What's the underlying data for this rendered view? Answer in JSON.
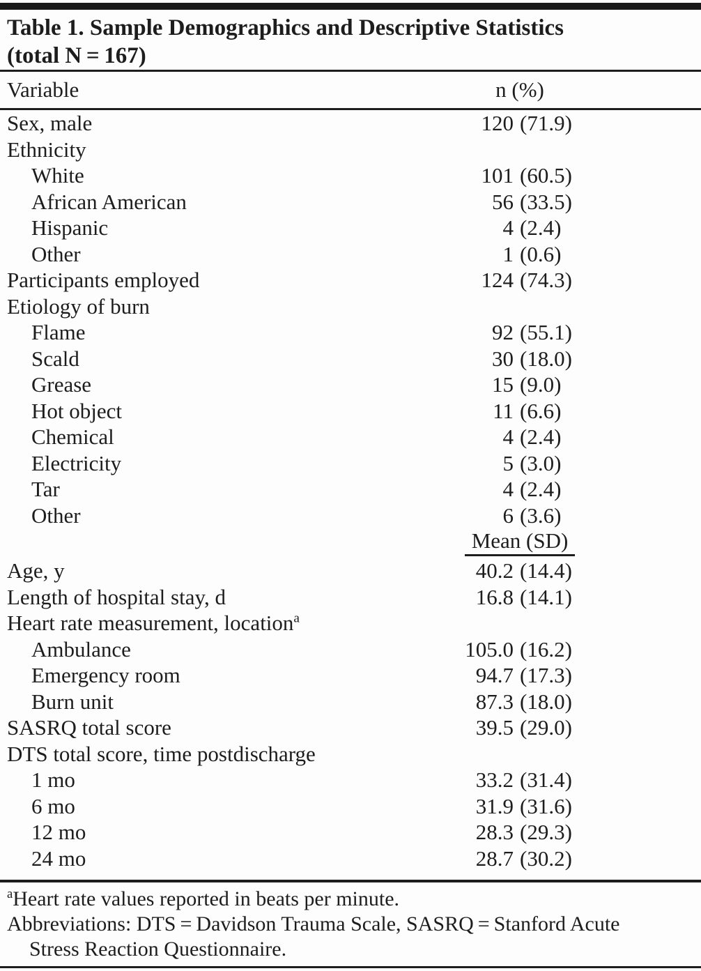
{
  "title": {
    "line1": "Table 1. Sample Demographics and Descriptive Statistics",
    "line2": "(total N = 167)"
  },
  "header": {
    "variable_col": "Variable",
    "n_col": "n (%)"
  },
  "table": {
    "mean_header": "Mean (SD)",
    "rows_n": [
      {
        "label": "Sex, male",
        "n": "120",
        "pct": "(71.9)",
        "indent": false
      },
      {
        "label": "Ethnicity",
        "indent": false
      },
      {
        "label": "White",
        "n": "101",
        "pct": "(60.5)",
        "indent": true
      },
      {
        "label": "African American",
        "n": "56",
        "pct": "(33.5)",
        "indent": true
      },
      {
        "label": "Hispanic",
        "n": "4",
        "pct": "(2.4)",
        "indent": true
      },
      {
        "label": "Other",
        "n": "1",
        "pct": "(0.6)",
        "indent": true
      },
      {
        "label": "Participants employed",
        "n": "124",
        "pct": "(74.3)",
        "indent": false
      },
      {
        "label": "Etiology of burn",
        "indent": false
      },
      {
        "label": "Flame",
        "n": "92",
        "pct": "(55.1)",
        "indent": true
      },
      {
        "label": "Scald",
        "n": "30",
        "pct": "(18.0)",
        "indent": true
      },
      {
        "label": "Grease",
        "n": "15",
        "pct": "(9.0)",
        "indent": true
      },
      {
        "label": "Hot object",
        "n": "11",
        "pct": "(6.6)",
        "indent": true
      },
      {
        "label": "Chemical",
        "n": "4",
        "pct": "(2.4)",
        "indent": true
      },
      {
        "label": "Electricity",
        "n": "5",
        "pct": "(3.0)",
        "indent": true
      },
      {
        "label": "Tar",
        "n": "4",
        "pct": "(2.4)",
        "indent": true
      },
      {
        "label": "Other",
        "n": "6",
        "pct": "(3.6)",
        "indent": true
      }
    ],
    "rows_mean": [
      {
        "label": "Age, y",
        "n": "40.2",
        "pct": "(14.4)",
        "indent": false
      },
      {
        "label": "Length of hospital stay, d",
        "n": "16.8",
        "pct": "(14.1)",
        "indent": false
      },
      {
        "label": "Heart rate measurement, location",
        "sup": "a",
        "indent": false
      },
      {
        "label": "Ambulance",
        "n": "105.0",
        "pct": "(16.2)",
        "indent": true
      },
      {
        "label": "Emergency room",
        "n": "94.7",
        "pct": "(17.3)",
        "indent": true
      },
      {
        "label": "Burn unit",
        "n": "87.3",
        "pct": "(18.0)",
        "indent": true
      },
      {
        "label": "SASRQ total score",
        "n": "39.5",
        "pct": "(29.0)",
        "indent": false
      },
      {
        "label": "DTS total score, time postdischarge",
        "indent": false
      },
      {
        "label": "1 mo",
        "n": "33.2",
        "pct": "(31.4)",
        "indent": true
      },
      {
        "label": "6 mo",
        "n": "31.9",
        "pct": "(31.6)",
        "indent": true
      },
      {
        "label": "12 mo",
        "n": "28.3",
        "pct": "(29.3)",
        "indent": true
      },
      {
        "label": "24 mo",
        "n": "28.7",
        "pct": "(30.2)",
        "indent": true
      }
    ]
  },
  "footnotes": {
    "note_a_marker": "a",
    "note_a_text": "Heart rate values reported in beats per minute.",
    "abbrev_line1": "Abbreviations: DTS = Davidson Trauma Scale, SASRQ = Stanford Acute",
    "abbrev_line2": "Stress Reaction Questionnaire."
  }
}
